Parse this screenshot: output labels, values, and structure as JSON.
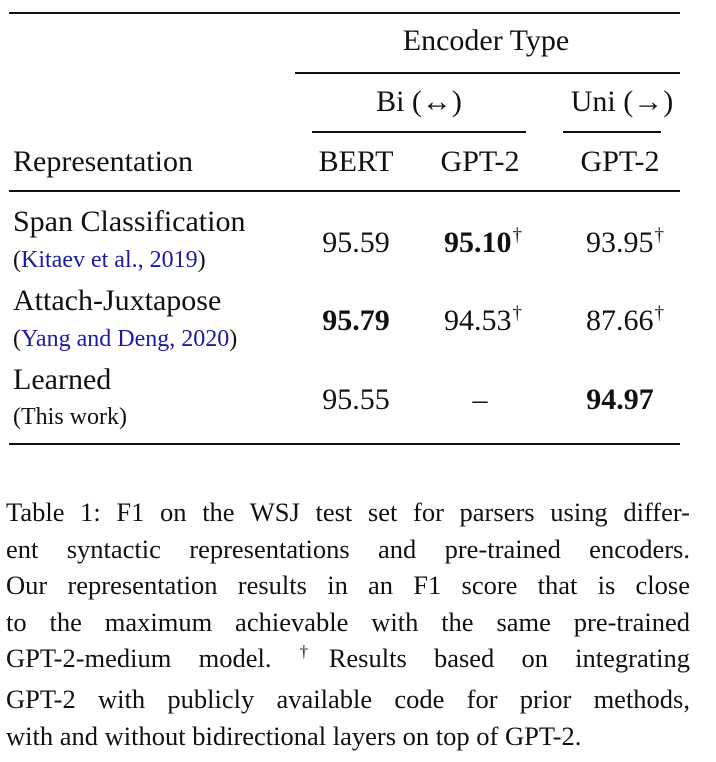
{
  "table": {
    "header": {
      "group": "Encoder Type",
      "bi": "Bi (↔)",
      "uni": "Uni (→)",
      "representation": "Representation",
      "col_bert": "BERT",
      "col_gpt2_bi": "GPT-2",
      "col_gpt2_uni": "GPT-2"
    },
    "rows": [
      {
        "name": "Span Classification",
        "citation": "Kitaev et al., 2019",
        "bert": "95.59",
        "gpt2_bi": "95.10",
        "gpt2_bi_mark": "†",
        "gpt2_uni": "93.95",
        "gpt2_uni_mark": "†"
      },
      {
        "name": "Attach-Juxtapose",
        "citation": "Yang and Deng, 2020",
        "bert": "95.79",
        "gpt2_bi": "94.53",
        "gpt2_bi_mark": "†",
        "gpt2_uni": "87.66",
        "gpt2_uni_mark": "†"
      },
      {
        "name": "Learned",
        "note": "(This work)",
        "bert": "95.55",
        "gpt2_bi": "–",
        "gpt2_uni": "94.97"
      }
    ]
  },
  "caption": {
    "lines": [
      "Table 1:  F1 on the WSJ test set for parsers using differ-",
      "ent syntactic representations and pre-trained encoders.",
      "Our representation results in an F1 score that is close",
      "to the maximum achievable with the same pre-trained",
      "GPT-2-medium model.  ",
      "Results based on integrating",
      "GPT-2 with publicly available code for prior methods,",
      "with and without bidirectional layers on top of GPT-2."
    ],
    "dagger": "†"
  }
}
